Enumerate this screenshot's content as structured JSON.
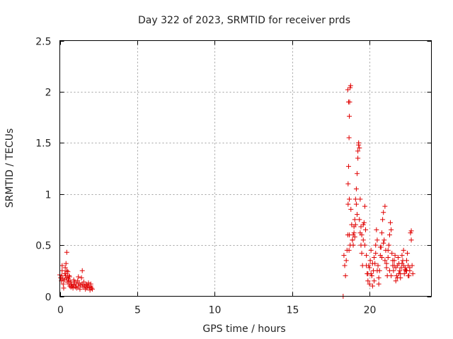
{
  "chart_data": {
    "type": "scatter",
    "title": "Day 322 of 2023, SRMTID for receiver prds",
    "xlabel": "GPS time / hours",
    "ylabel": "SRMTID / TECUs",
    "xlim": [
      0,
      24
    ],
    "ylim": [
      0,
      2.5
    ],
    "xticks": [
      0,
      5,
      10,
      15,
      20
    ],
    "yticks": [
      0,
      0.5,
      1,
      1.5,
      2,
      2.5
    ],
    "xtick_labels": [
      "0",
      "5",
      "10",
      "15",
      "20"
    ],
    "ytick_labels": [
      "0",
      "0.5",
      "1",
      "1.5",
      "2",
      "2.5"
    ],
    "grid": true,
    "marker": "plus",
    "series": [
      {
        "name": "prds",
        "color": "#e00000",
        "x": [
          0.0,
          0.05,
          0.1,
          0.12,
          0.15,
          0.2,
          0.22,
          0.25,
          0.3,
          0.33,
          0.35,
          0.38,
          0.4,
          0.42,
          0.45,
          0.48,
          0.5,
          0.52,
          0.55,
          0.58,
          0.6,
          0.63,
          0.65,
          0.7,
          0.72,
          0.75,
          0.8,
          0.85,
          0.9,
          0.95,
          1.0,
          1.05,
          1.1,
          1.15,
          1.2,
          1.25,
          1.3,
          1.35,
          1.4,
          1.45,
          1.5,
          1.55,
          1.6,
          1.65,
          1.7,
          1.75,
          1.8,
          1.85,
          1.9,
          1.95,
          2.0,
          2.05,
          2.1,
          0.45,
          1.45,
          0.15,
          0.35,
          0.6,
          0.9,
          1.2,
          1.7,
          2.0,
          18.3,
          18.35,
          18.4,
          18.45,
          18.5,
          18.55,
          18.6,
          18.62,
          18.65,
          18.68,
          18.7,
          18.72,
          18.75,
          18.78,
          18.8,
          18.85,
          18.9,
          18.95,
          19.0,
          19.05,
          19.1,
          19.15,
          19.2,
          19.25,
          19.3,
          19.35,
          19.4,
          19.45,
          19.5,
          19.55,
          19.6,
          19.65,
          19.7,
          19.75,
          19.8,
          19.85,
          19.9,
          19.95,
          20.0,
          20.05,
          20.1,
          20.15,
          20.2,
          20.25,
          20.3,
          20.35,
          20.4,
          20.45,
          20.5,
          20.55,
          20.6,
          20.65,
          20.7,
          20.75,
          20.8,
          20.85,
          20.9,
          20.95,
          21.0,
          21.05,
          21.1,
          21.15,
          21.2,
          21.25,
          21.3,
          21.35,
          21.4,
          21.45,
          21.5,
          21.55,
          21.6,
          21.65,
          21.7,
          21.75,
          21.8,
          21.85,
          21.9,
          21.95,
          22.0,
          22.05,
          22.1,
          22.15,
          22.2,
          22.25,
          22.3,
          22.35,
          22.4,
          22.45,
          22.5,
          22.55,
          22.6,
          22.65,
          22.7,
          22.75,
          22.8,
          18.6,
          18.65,
          18.62,
          18.68,
          18.7,
          18.7,
          18.75,
          19.3,
          19.25,
          19.2,
          19.1,
          19.0,
          18.9,
          18.95,
          19.05,
          19.15,
          19.35,
          19.4,
          19.45,
          19.5,
          19.6,
          19.7,
          20.1,
          20.3,
          20.5,
          20.6,
          20.7,
          20.8,
          20.9,
          21.0,
          21.1,
          21.2,
          21.3,
          21.4,
          21.5,
          21.6,
          21.8,
          22.0,
          22.2,
          22.4,
          22.6,
          22.7,
          20.2,
          20.4,
          21.7,
          21.9,
          22.1,
          22.3,
          22.5,
          19.8,
          19.9,
          20.0
        ],
        "y": [
          0.21,
          0.18,
          0.15,
          0.2,
          0.25,
          0.17,
          0.12,
          0.08,
          0.16,
          0.22,
          0.28,
          0.2,
          0.32,
          0.18,
          0.25,
          0.14,
          0.2,
          0.24,
          0.17,
          0.12,
          0.15,
          0.19,
          0.1,
          0.14,
          0.09,
          0.12,
          0.1,
          0.08,
          0.11,
          0.14,
          0.09,
          0.12,
          0.08,
          0.15,
          0.1,
          0.13,
          0.07,
          0.11,
          0.18,
          0.12,
          0.09,
          0.14,
          0.1,
          0.07,
          0.12,
          0.08,
          0.1,
          0.13,
          0.09,
          0.06,
          0.1,
          0.08,
          0.07,
          0.43,
          0.25,
          0.3,
          0.22,
          0.2,
          0.16,
          0.19,
          0.11,
          0.12,
          0.0,
          0.4,
          0.3,
          0.2,
          0.35,
          0.45,
          0.6,
          0.9,
          1.27,
          1.55,
          1.76,
          1.9,
          2.04,
          2.06,
          0.85,
          0.7,
          0.55,
          0.6,
          0.68,
          0.75,
          0.95,
          1.05,
          1.2,
          1.35,
          1.5,
          0.75,
          0.62,
          0.5,
          0.42,
          0.3,
          0.55,
          0.72,
          0.88,
          0.65,
          0.4,
          0.22,
          0.15,
          0.3,
          0.28,
          0.35,
          0.45,
          0.2,
          0.1,
          0.25,
          0.38,
          0.32,
          0.5,
          0.65,
          0.55,
          0.3,
          0.18,
          0.25,
          0.4,
          0.48,
          0.62,
          0.75,
          0.82,
          0.55,
          0.35,
          0.45,
          0.28,
          0.2,
          0.38,
          0.5,
          0.6,
          0.72,
          0.65,
          0.42,
          0.3,
          0.25,
          0.35,
          0.4,
          0.28,
          0.2,
          0.3,
          0.38,
          0.32,
          0.25,
          0.18,
          0.28,
          0.4,
          0.35,
          0.3,
          0.22,
          0.28,
          0.25,
          0.35,
          0.42,
          0.3,
          0.2,
          0.25,
          0.62,
          0.55,
          0.3,
          0.22,
          2.02,
          1.9,
          1.1,
          0.45,
          0.95,
          0.6,
          0.5,
          1.48,
          1.42,
          0.8,
          0.7,
          0.62,
          0.55,
          0.5,
          0.58,
          0.9,
          1.45,
          0.95,
          0.68,
          0.6,
          0.7,
          0.5,
          0.22,
          0.15,
          0.25,
          0.12,
          0.48,
          0.38,
          0.52,
          0.88,
          0.32,
          0.45,
          0.25,
          0.2,
          0.35,
          0.3,
          0.18,
          0.22,
          0.45,
          0.25,
          0.28,
          0.64,
          0.32,
          0.42,
          0.15,
          0.22,
          0.32,
          0.26,
          0.2,
          0.3,
          0.22,
          0.12
        ]
      }
    ]
  }
}
